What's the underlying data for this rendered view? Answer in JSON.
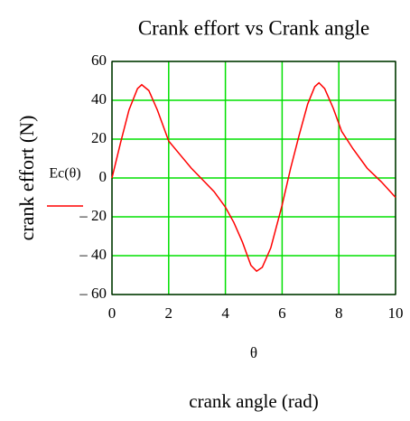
{
  "chart_data": {
    "type": "line",
    "title": "Crank effort vs Crank angle",
    "y_label": "crank effort (N)",
    "x_label": "θ",
    "x_axis_title": "crank angle (rad)",
    "xlim": [
      0,
      10
    ],
    "ylim": [
      -60,
      60
    ],
    "xticks": [
      0,
      2,
      4,
      6,
      8,
      10
    ],
    "yticks": [
      60,
      40,
      20,
      0,
      {
        "value": -20,
        "label": "– 20"
      },
      {
        "value": -40,
        "label": "– 40"
      },
      {
        "value": -60,
        "label": "– 60"
      }
    ],
    "grid": true,
    "grid_color": "#00e000",
    "x": [
      0,
      0.3,
      0.6,
      0.9,
      1.05,
      1.3,
      1.6,
      2,
      2.4,
      2.8,
      3.2,
      3.6,
      4,
      4.3,
      4.6,
      4.9,
      5.1,
      5.3,
      5.6,
      6,
      6.3,
      6.6,
      6.9,
      7.15,
      7.3,
      7.5,
      7.8,
      8.1,
      8.5,
      9,
      9.5,
      10
    ],
    "series": [
      {
        "name": "Ec(θ)",
        "color": "#ff0000",
        "values": [
          0,
          18,
          35,
          46,
          48,
          45,
          35,
          19,
          12,
          5,
          -1,
          -7,
          -15,
          -23,
          -33,
          -45,
          -48,
          -46,
          -36,
          -14,
          5,
          22,
          38,
          47,
          49,
          46,
          36,
          24,
          15,
          5,
          -2,
          -10
        ]
      }
    ]
  }
}
